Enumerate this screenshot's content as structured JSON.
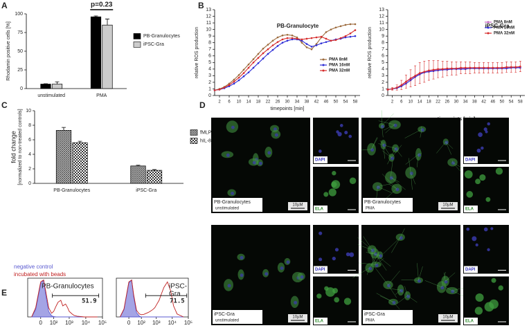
{
  "panels": [
    "A",
    "B",
    "C",
    "D",
    "E"
  ],
  "chart_data": [
    {
      "type": "bar",
      "ylabel": "Rhodamin positive cells [%]",
      "categories": [
        "unstimulated",
        "PMA"
      ],
      "ylim": [
        0,
        100
      ],
      "yticks": [
        0,
        25,
        50,
        75,
        100
      ],
      "annotation": "p=0.23",
      "legend": "right",
      "series": [
        {
          "name": "PB-Granulocytes",
          "color": "#000000",
          "values": [
            6,
            96
          ],
          "errors": [
            0.5,
            1.2
          ]
        },
        {
          "name": "iPSC-Gra",
          "color": "#cccccc",
          "values": [
            6,
            85
          ],
          "errors": [
            3,
            8
          ]
        }
      ]
    },
    {
      "type": "line",
      "title": "PB-Granulocyte",
      "ylabel": "relative ROS production",
      "xlabel": "timepoints [min]",
      "xlim": [
        0,
        60
      ],
      "xticks": [
        2,
        6,
        10,
        14,
        18,
        22,
        26,
        30,
        34,
        38,
        42,
        46,
        50,
        54,
        58
      ],
      "ylim": [
        0,
        13
      ],
      "yticks": [
        0,
        1,
        2,
        3,
        4,
        5,
        6,
        7,
        8,
        9,
        10,
        11,
        12,
        13
      ],
      "legend": "lower right",
      "x": [
        0,
        2,
        4,
        6,
        8,
        10,
        12,
        14,
        16,
        18,
        20,
        22,
        24,
        26,
        28,
        30,
        32,
        34,
        36,
        38,
        40,
        42,
        44,
        46,
        48,
        50,
        52,
        54,
        56,
        58
      ],
      "series": [
        {
          "name": "PMA 8nM",
          "color": "#9c6a3c",
          "values": [
            0.8,
            1.0,
            1.3,
            1.8,
            2.4,
            3.1,
            3.9,
            4.7,
            5.5,
            6.3,
            7.1,
            7.7,
            8.3,
            8.8,
            9.1,
            9.2,
            9.1,
            8.8,
            8.0,
            7.3,
            7.0,
            7.8,
            8.8,
            9.6,
            10.0,
            10.3,
            10.5,
            10.7,
            10.8,
            10.8
          ]
        },
        {
          "name": "PMA 16nM",
          "color": "#2b2bd6",
          "values": [
            0.8,
            0.9,
            1.1,
            1.4,
            1.8,
            2.3,
            2.9,
            3.5,
            4.2,
            4.9,
            5.6,
            6.3,
            6.9,
            7.5,
            8.0,
            8.3,
            8.5,
            8.5,
            8.3,
            7.8,
            7.4,
            7.6,
            7.9,
            8.1,
            8.3,
            8.5,
            8.6,
            8.8,
            8.9,
            9.0
          ]
        },
        {
          "name": "PMA 32nM",
          "color": "#d62b2b",
          "values": [
            0.8,
            0.9,
            1.2,
            1.6,
            2.1,
            2.7,
            3.4,
            4.2,
            5.0,
            5.7,
            6.4,
            7.0,
            7.6,
            8.1,
            8.5,
            8.7,
            8.7,
            8.6,
            8.5,
            8.6,
            8.7,
            8.8,
            8.9,
            8.6,
            8.3,
            8.4,
            8.7,
            9.0,
            9.4,
            9.9
          ]
        }
      ]
    },
    {
      "type": "line",
      "title": "iPSC-Gra",
      "ylabel": "relative ROS production",
      "xlabel": "timepoints [min]",
      "xlim": [
        0,
        60
      ],
      "xticks": [
        2,
        6,
        10,
        14,
        18,
        22,
        26,
        30,
        34,
        38,
        42,
        46,
        50,
        54,
        58
      ],
      "ylim": [
        0,
        13
      ],
      "yticks": [
        0,
        1,
        2,
        3,
        4,
        5,
        6,
        7,
        8,
        9,
        10,
        11,
        12,
        13
      ],
      "legend": "upper right",
      "x": [
        0,
        2,
        4,
        6,
        8,
        10,
        12,
        14,
        16,
        18,
        20,
        22,
        24,
        26,
        28,
        30,
        32,
        34,
        36,
        38,
        40,
        42,
        44,
        46,
        48,
        50,
        52,
        54,
        56,
        58
      ],
      "series": [
        {
          "name": "PMA 8nM",
          "color": "#c060c0",
          "values": [
            0.9,
            1.0,
            1.2,
            1.5,
            2.0,
            2.5,
            2.9,
            3.3,
            3.5,
            3.7,
            3.8,
            3.9,
            4.0,
            4.0,
            4.1,
            4.1,
            4.1,
            4.1,
            4.2,
            4.2,
            4.2,
            4.2,
            4.2,
            4.1,
            4.2,
            4.2,
            4.2,
            4.3,
            4.3,
            4.3
          ]
        },
        {
          "name": "PMA 16nM",
          "color": "#2b2bd6",
          "values": [
            0.9,
            1.0,
            1.1,
            1.4,
            1.8,
            2.3,
            2.8,
            3.2,
            3.5,
            3.6,
            3.7,
            3.8,
            3.9,
            3.9,
            4.0,
            4.0,
            4.0,
            4.0,
            4.1,
            4.1,
            4.1,
            4.1,
            4.1,
            4.1,
            4.1,
            4.1,
            4.1,
            4.2,
            4.2,
            4.2
          ]
        },
        {
          "name": "PMA 32nM",
          "color": "#d62b2b",
          "values": [
            0.9,
            1.0,
            1.2,
            1.6,
            2.1,
            2.6,
            3.0,
            3.4,
            3.6,
            3.8,
            3.9,
            4.0,
            4.0,
            4.1,
            4.1,
            4.1,
            4.2,
            4.2,
            4.2,
            4.2,
            4.2,
            4.2,
            4.2,
            4.2,
            4.2,
            4.2,
            4.3,
            4.3,
            4.3,
            4.4
          ],
          "errors": [
            0.1,
            0.2,
            0.4,
            0.7,
            1.0,
            1.3,
            1.5,
            1.6,
            1.6,
            1.5,
            1.4,
            1.3,
            1.2,
            1.1,
            1.0,
            1.0,
            0.9,
            0.9,
            0.9,
            0.8,
            0.8,
            0.8,
            0.8,
            0.8,
            0.8,
            0.8,
            0.8,
            0.8,
            0.8,
            0.8
          ]
        }
      ]
    },
    {
      "type": "bar",
      "ylabel": [
        "fold change",
        "[normalized to non-treated controls]"
      ],
      "categories": [
        "PB-Granulocytes",
        "iPSC-Gra"
      ],
      "ylim": [
        0,
        10
      ],
      "yticks": [
        0,
        2,
        4,
        6,
        8,
        10
      ],
      "legend": "right",
      "series": [
        {
          "name": "fMLP",
          "color": "#555555",
          "pattern": "crosshatch",
          "values": [
            7.3,
            2.4
          ],
          "errors": [
            0.4,
            0.1
          ]
        },
        {
          "name": "hIL-8",
          "color": "#333333",
          "pattern": "checker",
          "values": [
            5.6,
            1.8
          ],
          "errors": [
            0.2,
            0.1
          ]
        }
      ]
    },
    {
      "type": "histogram",
      "title": "PB-Granulocytes",
      "xscale": "biexponential",
      "xlim": [
        -100,
        100000
      ],
      "ylim": [
        0,
        105
      ],
      "xticks": [
        0,
        {
          "value": 100,
          "label": "10²"
        },
        {
          "value": 1000,
          "label": "10³"
        },
        {
          "value": 10000,
          "label": "10⁴"
        },
        {
          "value": 100000,
          "label": "10⁵"
        }
      ],
      "x": [
        -50,
        -20,
        0,
        10,
        20,
        40,
        70,
        100,
        150,
        200,
        300,
        400,
        600,
        800,
        1000,
        1500,
        2000,
        3000,
        5000,
        8000,
        12000,
        20000,
        50000
      ],
      "gate": [
        80,
        60000
      ],
      "gate_percent": 51.9,
      "series": [
        {
          "name": "negative control",
          "color": "#5a5ad0",
          "filled": true,
          "values": [
            0,
            20,
            90,
            100,
            60,
            15,
            3,
            1,
            0,
            0,
            0,
            0,
            0,
            0,
            0,
            0,
            0,
            0,
            0,
            0,
            0,
            0,
            0
          ]
        },
        {
          "name": "incubated with beads",
          "color": "#c02020",
          "filled": false,
          "values": [
            0,
            25,
            95,
            100,
            70,
            25,
            10,
            15,
            30,
            40,
            45,
            30,
            35,
            25,
            15,
            8,
            4,
            2,
            1,
            0,
            0,
            0,
            0
          ]
        }
      ]
    },
    {
      "type": "histogram",
      "title": [
        "iPSC-",
        "Gra"
      ],
      "xscale": "biexponential",
      "xlim": [
        -100,
        100000
      ],
      "ylim": [
        0,
        105
      ],
      "xticks": [
        0,
        {
          "value": 100,
          "label": "10²"
        },
        {
          "value": 1000,
          "label": "10³"
        },
        {
          "value": 10000,
          "label": "10⁴"
        },
        {
          "value": 100000,
          "label": "10⁵"
        }
      ],
      "x": [
        -50,
        -20,
        0,
        10,
        20,
        40,
        70,
        100,
        150,
        200,
        300,
        400,
        600,
        800,
        1000,
        1500,
        2000,
        3000,
        5000,
        8000,
        12000,
        20000,
        50000
      ],
      "gate": [
        200,
        80000
      ],
      "gate_percent": 71.5,
      "series": [
        {
          "color": "#5a5ad0",
          "filled": true,
          "values": [
            0,
            20,
            92,
            100,
            55,
            12,
            2,
            0,
            0,
            0,
            0,
            0,
            0,
            0,
            0,
            0,
            0,
            0,
            0,
            0,
            0,
            0,
            0
          ]
        },
        {
          "color": "#c02020",
          "filled": false,
          "values": [
            0,
            22,
            95,
            100,
            60,
            18,
            8,
            6,
            7,
            9,
            12,
            15,
            20,
            25,
            32,
            45,
            60,
            80,
            95,
            70,
            30,
            8,
            0
          ]
        }
      ]
    }
  ],
  "micrographs": [
    {
      "label": "PB-Granulocytes",
      "condition": "unstimulated",
      "scale": "10µM",
      "channels": [
        "DAPI",
        "ELA"
      ]
    },
    {
      "label": "PB-Granulocytes",
      "condition": "PMA",
      "scale": "10µM",
      "channels": [
        "DAPI",
        "ELA"
      ]
    },
    {
      "label": "iPSC-Gra",
      "condition": "unstimulated",
      "scale": "10µM",
      "channels": [
        "DAPI",
        "ELA"
      ]
    },
    {
      "label": "iPSC-Gra",
      "condition": "PMA",
      "scale": "10µM",
      "channels": [
        "DAPI",
        "ELA"
      ]
    }
  ]
}
